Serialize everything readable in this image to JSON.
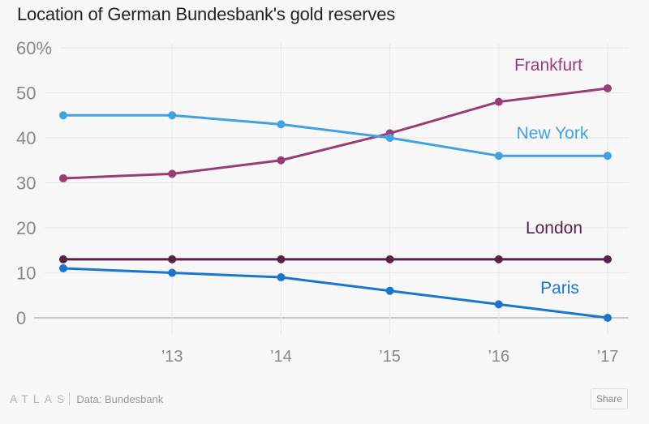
{
  "title": "Location of German Bundesbank's gold reserves",
  "footer": {
    "brand": "ATLAS",
    "source": "Data: Bundesbank",
    "share_label": "Share"
  },
  "chart_data": {
    "type": "line",
    "title": "Location of German Bundesbank's gold reserves",
    "xlabel": "",
    "ylabel": "",
    "x": [
      2012,
      2013,
      2014,
      2015,
      2016,
      2017
    ],
    "x_tick_labels": [
      "",
      "'13",
      "'14",
      "'15",
      "'16",
      "'17"
    ],
    "y_tick_labels": [
      "0",
      "10",
      "20",
      "30",
      "40",
      "50",
      "60%"
    ],
    "ylim": [
      0,
      60
    ],
    "grid": true,
    "legend": "inline-labels",
    "series": [
      {
        "name": "Frankfurt",
        "color": "#973f75",
        "values": [
          31,
          32,
          35,
          41,
          48,
          51
        ]
      },
      {
        "name": "New York",
        "color": "#41a2df",
        "values": [
          45,
          45,
          43,
          40,
          36,
          36
        ]
      },
      {
        "name": "London",
        "color": "#5a2147",
        "values": [
          13,
          13,
          13,
          13,
          13,
          13
        ]
      },
      {
        "name": "Paris",
        "color": "#1a76cc",
        "values": [
          11,
          10,
          9,
          6,
          3,
          0
        ]
      }
    ]
  }
}
